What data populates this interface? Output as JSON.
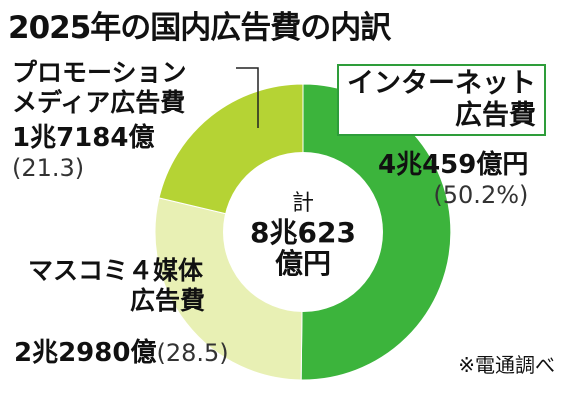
{
  "title": "2025年の国内広告費の内訳",
  "center": {
    "line1": "計",
    "line2": "8兆623",
    "line3": "億円"
  },
  "source": "※電通調べ",
  "chart_data": {
    "type": "pie",
    "title": "2025年の国内広告費の内訳",
    "total_label": "8兆623億円",
    "slices": [
      {
        "name": "インターネット広告費",
        "name_lines": [
          "インターネット",
          "広告費"
        ],
        "amount": "4兆459億円",
        "percent_label": "(50.2%)",
        "percent": 50.2,
        "color": "#3cb43c"
      },
      {
        "name": "マスコミ４媒体広告費",
        "name_lines": [
          "マスコミ４媒体",
          "広告費"
        ],
        "amount": "2兆2980億",
        "percent_label": "(28.5)",
        "percent": 28.5,
        "color": "#e8f0b4"
      },
      {
        "name": "プロモーションメディア広告費",
        "name_lines": [
          "プロモーション",
          "メディア広告費"
        ],
        "amount": "1兆7184億",
        "percent_label": "(21.3)",
        "percent": 21.3,
        "color": "#b5d334"
      }
    ]
  }
}
